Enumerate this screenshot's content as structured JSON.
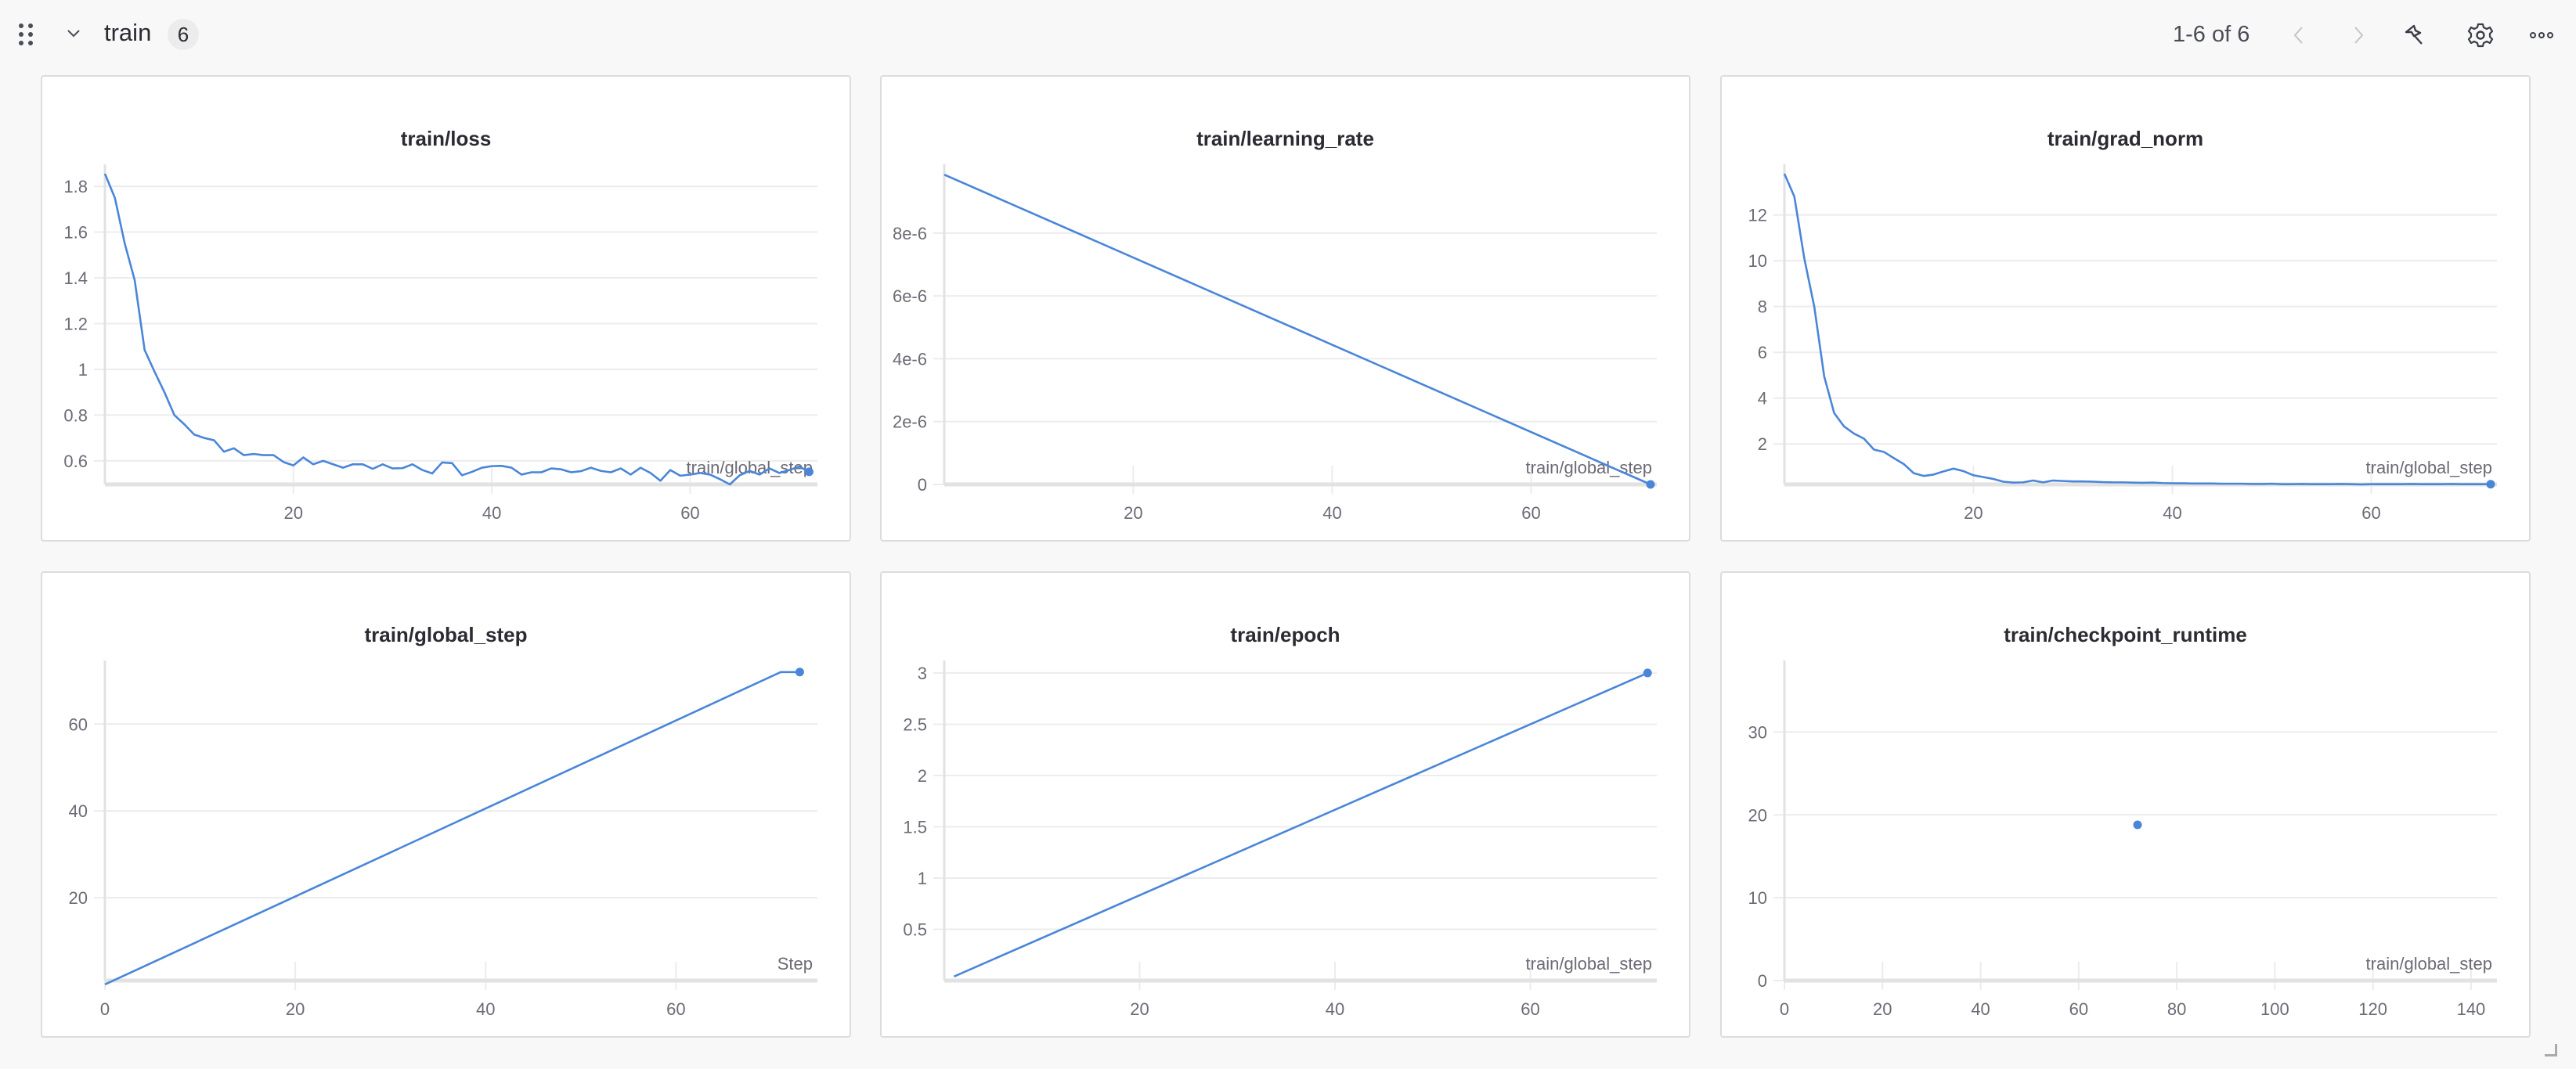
{
  "section": {
    "title": "train",
    "count": "6"
  },
  "pager": {
    "label": "1-6 of 6"
  },
  "colors": {
    "line": "#4a86d8",
    "grid": "#ececec",
    "axis": "#e2e2e2",
    "tick_text": "#6b6b76"
  },
  "icons": [
    "drag-handle-icon",
    "chevron-down-icon",
    "chevron-left-icon",
    "chevron-right-icon",
    "pin-icon",
    "gear-icon",
    "more-icon"
  ],
  "chart_data": [
    {
      "type": "line",
      "title": "train/loss",
      "xlabel": "train/global_step",
      "ylabel": "",
      "xlim": [
        1,
        72.2
      ],
      "ylim": [
        0.497,
        1.855
      ],
      "xticks": [
        20,
        40,
        60
      ],
      "xtick_labels": [
        "20",
        "40",
        "60"
      ],
      "yticks": [
        0.6,
        0.8,
        1,
        1.2,
        1.4,
        1.6,
        1.8
      ],
      "ytick_labels": [
        "0.6",
        "0.8",
        "1",
        "1.2",
        "1.4",
        "1.6",
        "1.8"
      ],
      "x_start": 1,
      "y": [
        1.855,
        1.75,
        1.55,
        1.39,
        1.085,
        0.99,
        0.9,
        0.8,
        0.76,
        0.715,
        0.7,
        0.69,
        0.64,
        0.655,
        0.625,
        0.63,
        0.625,
        0.625,
        0.595,
        0.58,
        0.615,
        0.585,
        0.6,
        0.585,
        0.57,
        0.585,
        0.585,
        0.565,
        0.585,
        0.567,
        0.568,
        0.585,
        0.56,
        0.545,
        0.593,
        0.59,
        0.537,
        0.552,
        0.57,
        0.577,
        0.578,
        0.57,
        0.54,
        0.55,
        0.55,
        0.567,
        0.563,
        0.55,
        0.555,
        0.57,
        0.556,
        0.55,
        0.567,
        0.54,
        0.57,
        0.547,
        0.513,
        0.56,
        0.535,
        0.54,
        0.547,
        0.54,
        0.52,
        0.497,
        0.537,
        0.556,
        0.54,
        0.567,
        0.547,
        0.56,
        0.575,
        0.552
      ],
      "end_dot": true
    },
    {
      "type": "line",
      "title": "train/learning_rate",
      "xlabel": "train/global_step",
      "ylabel": "",
      "xlim": [
        1,
        72
      ],
      "ylim": [
        0,
        9.89e-06
      ],
      "xticks": [
        20,
        40,
        60
      ],
      "xtick_labels": [
        "20",
        "40",
        "60"
      ],
      "yticks": [
        0,
        2e-06,
        4e-06,
        6e-06,
        8e-06
      ],
      "ytick_labels": [
        "0",
        "2e-6",
        "4e-6",
        "6e-6",
        "8e-6"
      ],
      "x": [
        1,
        72
      ],
      "y": [
        9.86e-06,
        0
      ],
      "end_dot": true
    },
    {
      "type": "line",
      "title": "train/grad_norm",
      "xlabel": "train/global_step",
      "ylabel": "",
      "xlim": [
        1,
        72
      ],
      "ylim": [
        0.23,
        13.8
      ],
      "xticks": [
        20,
        40,
        60
      ],
      "xtick_labels": [
        "20",
        "40",
        "60"
      ],
      "yticks": [
        2,
        4,
        6,
        8,
        10,
        12
      ],
      "ytick_labels": [
        "2",
        "4",
        "6",
        "8",
        "10",
        "12"
      ],
      "x_start": 1,
      "y": [
        13.8,
        12.8,
        10.1,
        8.0,
        4.95,
        3.35,
        2.76,
        2.45,
        2.23,
        1.75,
        1.65,
        1.38,
        1.12,
        0.72,
        0.6,
        0.66,
        0.8,
        0.92,
        0.81,
        0.63,
        0.55,
        0.47,
        0.35,
        0.31,
        0.32,
        0.4,
        0.32,
        0.4,
        0.38,
        0.36,
        0.36,
        0.35,
        0.33,
        0.32,
        0.32,
        0.31,
        0.3,
        0.31,
        0.29,
        0.28,
        0.28,
        0.27,
        0.27,
        0.27,
        0.26,
        0.26,
        0.26,
        0.25,
        0.25,
        0.26,
        0.24,
        0.24,
        0.25,
        0.24,
        0.24,
        0.24,
        0.25,
        0.24,
        0.23,
        0.24,
        0.24,
        0.24,
        0.24,
        0.25,
        0.24,
        0.24,
        0.24,
        0.25,
        0.24,
        0.24,
        0.24,
        0.24
      ],
      "end_dot": true
    },
    {
      "type": "line",
      "title": "train/global_step",
      "xlabel": "Step",
      "ylabel": "",
      "xlim": [
        0,
        74.2
      ],
      "ylim": [
        0.9,
        72.5
      ],
      "xticks": [
        0,
        20,
        40,
        60
      ],
      "xtick_labels": [
        "0",
        "20",
        "40",
        "60"
      ],
      "yticks": [
        20,
        40,
        60
      ],
      "ytick_labels": [
        "20",
        "40",
        "60"
      ],
      "x": [
        0,
        71,
        73
      ],
      "y": [
        0,
        72,
        72
      ],
      "end_dot": true
    },
    {
      "type": "line",
      "title": "train/epoch",
      "xlabel": "train/global_step",
      "ylabel": "",
      "xlim": [
        0,
        72.3
      ],
      "ylim": [
        0,
        3.03
      ],
      "xticks": [
        20,
        40,
        60
      ],
      "xtick_labels": [
        "20",
        "40",
        "60"
      ],
      "yticks": [
        0.5,
        1,
        1.5,
        2,
        2.5,
        3
      ],
      "ytick_labels": [
        "0.5",
        "1",
        "1.5",
        "2",
        "2.5",
        "3"
      ],
      "x": [
        1,
        72
      ],
      "y": [
        0.04,
        3
      ],
      "end_dot": true
    },
    {
      "type": "scatter",
      "title": "train/checkpoint_runtime",
      "xlabel": "train/global_step",
      "ylabel": "",
      "xlim": [
        0,
        144
      ],
      "ylim": [
        0,
        37.5
      ],
      "xticks": [
        0,
        20,
        40,
        60,
        80,
        100,
        120,
        140
      ],
      "xtick_labels": [
        "0",
        "20",
        "40",
        "60",
        "80",
        "100",
        "120",
        "140"
      ],
      "yticks": [
        0,
        10,
        20,
        30
      ],
      "ytick_labels": [
        "0",
        "10",
        "20",
        "30"
      ],
      "x": [
        72
      ],
      "y": [
        18.8
      ],
      "end_dot": true
    }
  ]
}
